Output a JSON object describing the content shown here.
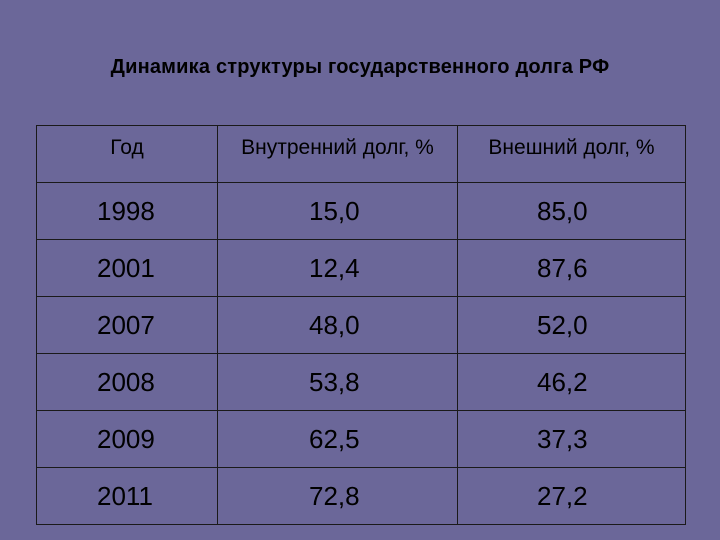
{
  "chart_data": {
    "type": "table",
    "title": "Динамика структуры государственного долга РФ",
    "columns": [
      "Год",
      "Внутренний долг, %",
      "Внешний долг, %"
    ],
    "rows": [
      {
        "year": "1998",
        "domestic": "15,0",
        "external": "85,0"
      },
      {
        "year": "2001",
        "domestic": "12,4",
        "external": "87,6"
      },
      {
        "year": "2007",
        "domestic": "48,0",
        "external": "52,0"
      },
      {
        "year": "2008",
        "domestic": "53,8",
        "external": "46,2"
      },
      {
        "year": "2009",
        "domestic": "62,5",
        "external": "37,3"
      },
      {
        "year": "2011",
        "domestic": "72,8",
        "external": "27,2"
      }
    ]
  },
  "colors": {
    "background": "#6b6799",
    "text": "#000000",
    "border": "#1a1a1a"
  }
}
